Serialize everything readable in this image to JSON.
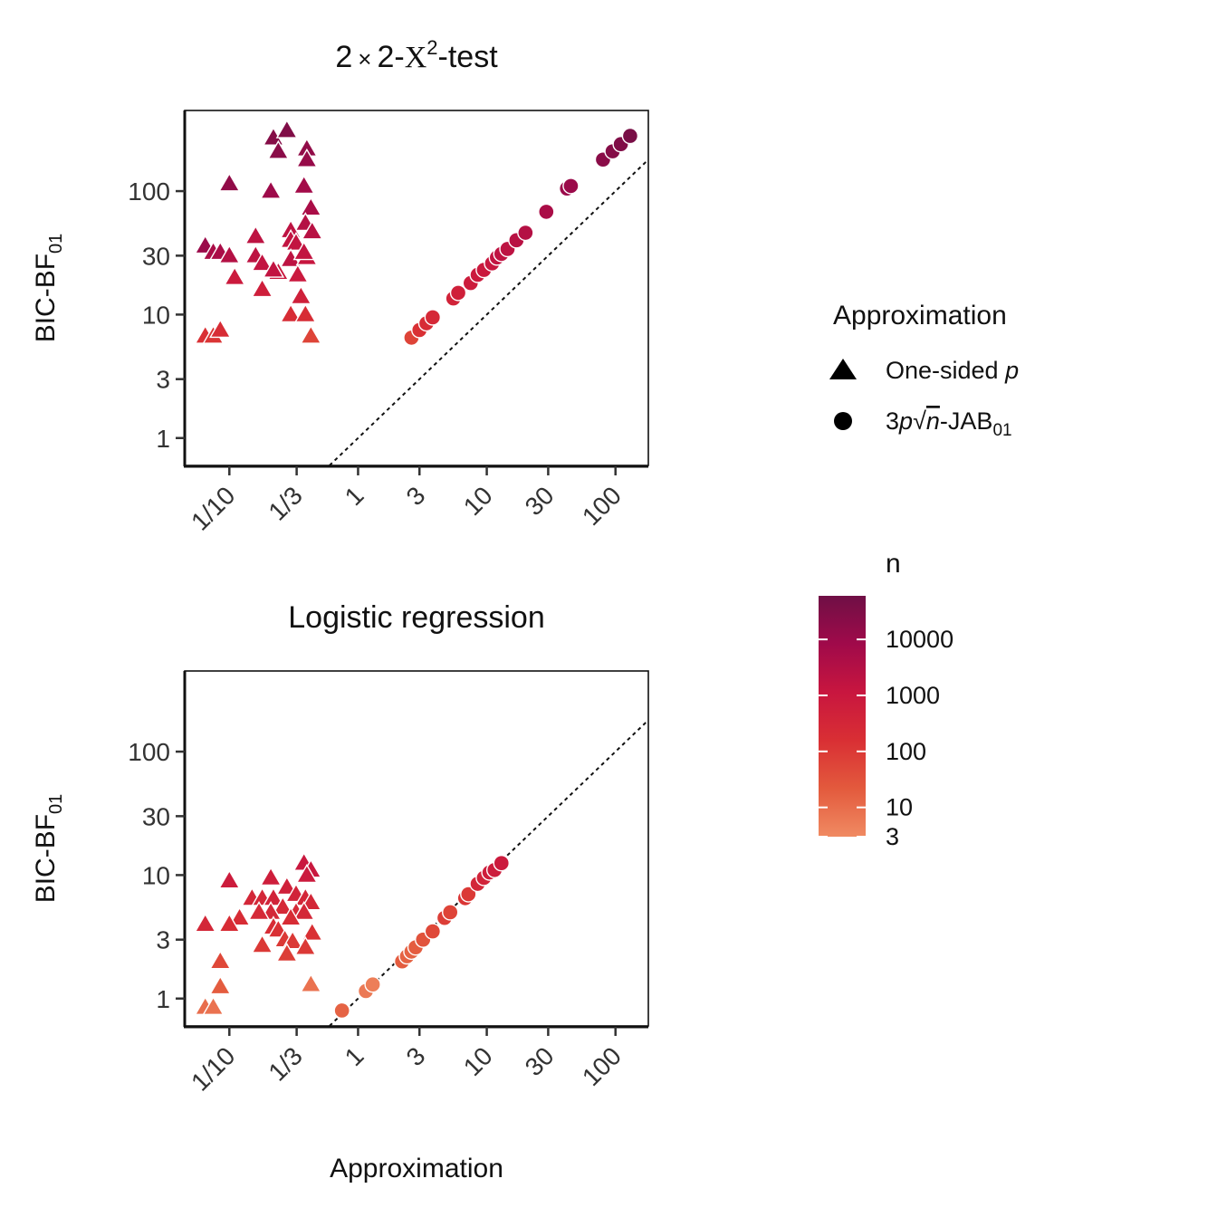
{
  "chart_data": [
    {
      "type": "scatter",
      "title": "2 × 2-Χ²-test",
      "title_parts": {
        "a": "2",
        "times": "×",
        "b": "2-",
        "chi": "Χ",
        "sup": "2",
        "suffix": "-test"
      },
      "xlabel": "",
      "ylabel": "BIC-BF01",
      "ylabel_parts": {
        "main": "BIC-BF",
        "sub": "01"
      },
      "x_scale": "log",
      "y_scale": "log",
      "xlim": [
        0.045,
        180
      ],
      "ylim": [
        0.6,
        450
      ],
      "x_ticks": [
        {
          "value": 0.1,
          "label": "1/10"
        },
        {
          "value": 0.3333,
          "label": "1/3"
        },
        {
          "value": 1,
          "label": "1"
        },
        {
          "value": 3,
          "label": "3"
        },
        {
          "value": 10,
          "label": "10"
        },
        {
          "value": 30,
          "label": "30"
        },
        {
          "value": 100,
          "label": "100"
        }
      ],
      "y_ticks": [
        {
          "value": 1,
          "label": "1"
        },
        {
          "value": 3,
          "label": "3"
        },
        {
          "value": 10,
          "label": "10"
        },
        {
          "value": 30,
          "label": "30"
        },
        {
          "value": 100,
          "label": "100"
        }
      ],
      "reference_line": "y = x",
      "series": [
        {
          "name": "One-sided p",
          "shape": "triangle",
          "points": [
            {
              "x": 0.22,
              "y": 270,
              "n": 25000
            },
            {
              "x": 0.28,
              "y": 310,
              "n": 30000
            },
            {
              "x": 0.24,
              "y": 210,
              "n": 20000
            },
            {
              "x": 0.4,
              "y": 220,
              "n": 15000
            },
            {
              "x": 0.4,
              "y": 180,
              "n": 12000
            },
            {
              "x": 0.1,
              "y": 115,
              "n": 15000
            },
            {
              "x": 0.21,
              "y": 100,
              "n": 9000
            },
            {
              "x": 0.38,
              "y": 110,
              "n": 7000
            },
            {
              "x": 0.43,
              "y": 73,
              "n": 5000
            },
            {
              "x": 0.39,
              "y": 55,
              "n": 3000
            },
            {
              "x": 0.44,
              "y": 47,
              "n": 2500
            },
            {
              "x": 0.3,
              "y": 48,
              "n": 2000
            },
            {
              "x": 0.3,
              "y": 40,
              "n": 1500
            },
            {
              "x": 0.16,
              "y": 43,
              "n": 2000
            },
            {
              "x": 0.33,
              "y": 38,
              "n": 1500
            },
            {
              "x": 0.065,
              "y": 36,
              "n": 10000
            },
            {
              "x": 0.075,
              "y": 32,
              "n": 5000
            },
            {
              "x": 0.085,
              "y": 32,
              "n": 5000
            },
            {
              "x": 0.1,
              "y": 30,
              "n": 3000
            },
            {
              "x": 0.16,
              "y": 30,
              "n": 2000
            },
            {
              "x": 0.18,
              "y": 26,
              "n": 1500
            },
            {
              "x": 0.3,
              "y": 28,
              "n": 2000
            },
            {
              "x": 0.4,
              "y": 29,
              "n": 1200
            },
            {
              "x": 0.38,
              "y": 32,
              "n": 1500
            },
            {
              "x": 0.24,
              "y": 22,
              "n": 1000
            },
            {
              "x": 0.22,
              "y": 23,
              "n": 1500
            },
            {
              "x": 0.34,
              "y": 21,
              "n": 900
            },
            {
              "x": 0.11,
              "y": 20,
              "n": 800
            },
            {
              "x": 0.18,
              "y": 16,
              "n": 600
            },
            {
              "x": 0.36,
              "y": 14,
              "n": 500
            },
            {
              "x": 0.3,
              "y": 10,
              "n": 200
            },
            {
              "x": 0.39,
              "y": 10,
              "n": 200
            },
            {
              "x": 0.065,
              "y": 6.7,
              "n": 150
            },
            {
              "x": 0.075,
              "y": 6.7,
              "n": 120
            },
            {
              "x": 0.085,
              "y": 7.5,
              "n": 200
            },
            {
              "x": 0.43,
              "y": 6.7,
              "n": 60
            }
          ]
        },
        {
          "name": "3p√n-JAB01",
          "shape": "circle",
          "points": [
            {
              "x": 2.6,
              "y": 6.5,
              "n": 60
            },
            {
              "x": 3,
              "y": 7.5,
              "n": 150
            },
            {
              "x": 3.4,
              "y": 8.5,
              "n": 200
            },
            {
              "x": 3.8,
              "y": 9.5,
              "n": 250
            },
            {
              "x": 5.5,
              "y": 13.5,
              "n": 400
            },
            {
              "x": 6,
              "y": 15,
              "n": 500
            },
            {
              "x": 7.5,
              "y": 18,
              "n": 700
            },
            {
              "x": 8.5,
              "y": 21,
              "n": 800
            },
            {
              "x": 9.5,
              "y": 23,
              "n": 900
            },
            {
              "x": 11,
              "y": 26,
              "n": 1200
            },
            {
              "x": 12,
              "y": 29,
              "n": 1500
            },
            {
              "x": 13,
              "y": 31,
              "n": 1800
            },
            {
              "x": 14.5,
              "y": 34,
              "n": 2000
            },
            {
              "x": 17,
              "y": 40,
              "n": 2500
            },
            {
              "x": 20,
              "y": 46,
              "n": 3000
            },
            {
              "x": 29,
              "y": 68,
              "n": 5000
            },
            {
              "x": 42,
              "y": 105,
              "n": 10000
            },
            {
              "x": 45,
              "y": 110,
              "n": 10000
            },
            {
              "x": 80,
              "y": 180,
              "n": 20000
            },
            {
              "x": 95,
              "y": 210,
              "n": 25000
            },
            {
              "x": 110,
              "y": 240,
              "n": 30000
            },
            {
              "x": 130,
              "y": 280,
              "n": 40000
            }
          ]
        }
      ]
    },
    {
      "type": "scatter",
      "title": "Logistic regression",
      "xlabel": "Approximation",
      "ylabel": "BIC-BF01",
      "ylabel_parts": {
        "main": "BIC-BF",
        "sub": "01"
      },
      "x_scale": "log",
      "y_scale": "log",
      "xlim": [
        0.045,
        180
      ],
      "ylim": [
        0.6,
        450
      ],
      "x_ticks": [
        {
          "value": 0.1,
          "label": "1/10"
        },
        {
          "value": 0.3333,
          "label": "1/3"
        },
        {
          "value": 1,
          "label": "1"
        },
        {
          "value": 3,
          "label": "3"
        },
        {
          "value": 10,
          "label": "10"
        },
        {
          "value": 30,
          "label": "30"
        },
        {
          "value": 100,
          "label": "100"
        }
      ],
      "y_ticks": [
        {
          "value": 1,
          "label": "1"
        },
        {
          "value": 3,
          "label": "3"
        },
        {
          "value": 10,
          "label": "10"
        },
        {
          "value": 30,
          "label": "30"
        },
        {
          "value": 100,
          "label": "100"
        }
      ],
      "reference_line": "y = x",
      "series": [
        {
          "name": "One-sided p",
          "shape": "triangle",
          "points": [
            {
              "x": 0.38,
              "y": 12.5,
              "n": 1000
            },
            {
              "x": 0.43,
              "y": 11,
              "n": 1000
            },
            {
              "x": 0.4,
              "y": 10,
              "n": 800
            },
            {
              "x": 0.1,
              "y": 9,
              "n": 700
            },
            {
              "x": 0.21,
              "y": 9.5,
              "n": 600
            },
            {
              "x": 0.28,
              "y": 8,
              "n": 500
            },
            {
              "x": 0.33,
              "y": 7,
              "n": 400
            },
            {
              "x": 0.15,
              "y": 6.5,
              "n": 300
            },
            {
              "x": 0.18,
              "y": 6.5,
              "n": 300
            },
            {
              "x": 0.22,
              "y": 6.5,
              "n": 400
            },
            {
              "x": 0.39,
              "y": 6.5,
              "n": 300
            },
            {
              "x": 0.43,
              "y": 6,
              "n": 300
            },
            {
              "x": 0.26,
              "y": 5.5,
              "n": 250
            },
            {
              "x": 0.21,
              "y": 5,
              "n": 300
            },
            {
              "x": 0.17,
              "y": 5,
              "n": 250
            },
            {
              "x": 0.33,
              "y": 5,
              "n": 250
            },
            {
              "x": 0.38,
              "y": 5,
              "n": 300
            },
            {
              "x": 0.12,
              "y": 4.5,
              "n": 200
            },
            {
              "x": 0.3,
              "y": 4.5,
              "n": 200
            },
            {
              "x": 0.065,
              "y": 4,
              "n": 300
            },
            {
              "x": 0.1,
              "y": 4,
              "n": 200
            },
            {
              "x": 0.22,
              "y": 3.8,
              "n": 200
            },
            {
              "x": 0.24,
              "y": 3.6,
              "n": 150
            },
            {
              "x": 0.44,
              "y": 3.4,
              "n": 150
            },
            {
              "x": 0.18,
              "y": 2.7,
              "n": 100
            },
            {
              "x": 0.27,
              "y": 3,
              "n": 100
            },
            {
              "x": 0.31,
              "y": 2.9,
              "n": 100
            },
            {
              "x": 0.39,
              "y": 2.6,
              "n": 100
            },
            {
              "x": 0.28,
              "y": 2.3,
              "n": 80
            },
            {
              "x": 0.085,
              "y": 2,
              "n": 50
            },
            {
              "x": 0.085,
              "y": 1.25,
              "n": 20
            },
            {
              "x": 0.43,
              "y": 1.3,
              "n": 8
            },
            {
              "x": 0.065,
              "y": 0.85,
              "n": 10
            },
            {
              "x": 0.075,
              "y": 0.85,
              "n": 8
            }
          ]
        },
        {
          "name": "3p√n-JAB01",
          "shape": "circle",
          "points": [
            {
              "x": 0.75,
              "y": 0.8,
              "n": 15
            },
            {
              "x": 1.15,
              "y": 1.15,
              "n": 6
            },
            {
              "x": 1.3,
              "y": 1.3,
              "n": 5
            },
            {
              "x": 2.2,
              "y": 2,
              "n": 20
            },
            {
              "x": 2.4,
              "y": 2.2,
              "n": 15
            },
            {
              "x": 2.6,
              "y": 2.4,
              "n": 15
            },
            {
              "x": 2.8,
              "y": 2.6,
              "n": 20
            },
            {
              "x": 3.2,
              "y": 3,
              "n": 30
            },
            {
              "x": 3.8,
              "y": 3.5,
              "n": 50
            },
            {
              "x": 4.7,
              "y": 4.5,
              "n": 80
            },
            {
              "x": 5.2,
              "y": 5,
              "n": 60
            },
            {
              "x": 6.8,
              "y": 6.5,
              "n": 120
            },
            {
              "x": 7.2,
              "y": 7,
              "n": 100
            },
            {
              "x": 8.5,
              "y": 8.5,
              "n": 300
            },
            {
              "x": 9.5,
              "y": 9.5,
              "n": 400
            },
            {
              "x": 10.5,
              "y": 10.5,
              "n": 600
            },
            {
              "x": 11.5,
              "y": 11,
              "n": 700
            },
            {
              "x": 13,
              "y": 12.5,
              "n": 800
            }
          ]
        }
      ]
    }
  ],
  "legend": {
    "shape_title": "Approximation",
    "shape_items": [
      {
        "label_main": "One-sided ",
        "label_italic": "p",
        "shape": "triangle"
      },
      {
        "label_pre": "3",
        "label_p": "p",
        "label_sqrt": "√",
        "label_n": "n",
        "label_post": "-JAB",
        "label_sub": "01",
        "shape": "circle"
      }
    ],
    "color_title": "n",
    "color_ticks": [
      {
        "value": 10000,
        "label": "10000"
      },
      {
        "value": 1000,
        "label": "1000"
      },
      {
        "value": 100,
        "label": "100"
      },
      {
        "value": 10,
        "label": "10"
      },
      {
        "value": 3,
        "label": "3"
      }
    ],
    "color_range": [
      3,
      60000
    ],
    "colors": [
      "#f08a62",
      "#e35a3d",
      "#d92f34",
      "#c8163f",
      "#a00a4a",
      "#6f0f45"
    ]
  }
}
